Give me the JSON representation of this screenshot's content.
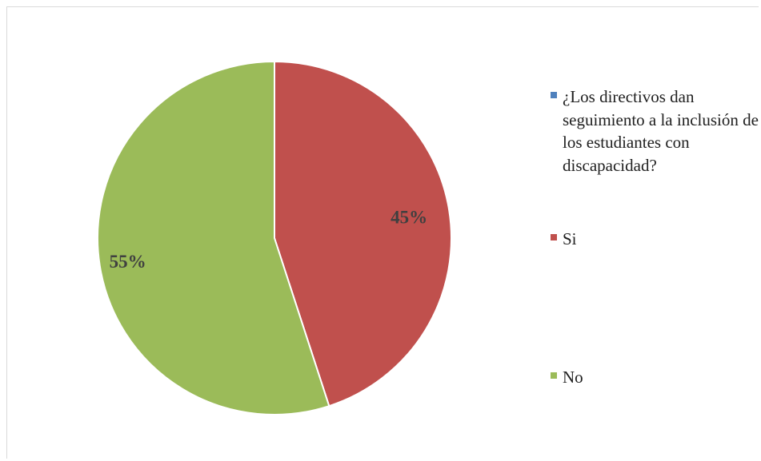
{
  "chart_data": {
    "type": "pie",
    "title": "",
    "slices": [
      {
        "label": "Si",
        "value": 45,
        "display": "45%",
        "color": "#c0504d"
      },
      {
        "label": "No",
        "value": 55,
        "display": "55%",
        "color": "#9bbb59"
      }
    ],
    "legend_position": "right",
    "legend": [
      {
        "label": "¿Los directivos dan seguimiento a la inclusión de los estudiantes con discapacidad?",
        "color": "#4f81bd"
      },
      {
        "label": "Si",
        "color": "#c0504d"
      },
      {
        "label": "No",
        "color": "#9bbb59"
      }
    ]
  }
}
